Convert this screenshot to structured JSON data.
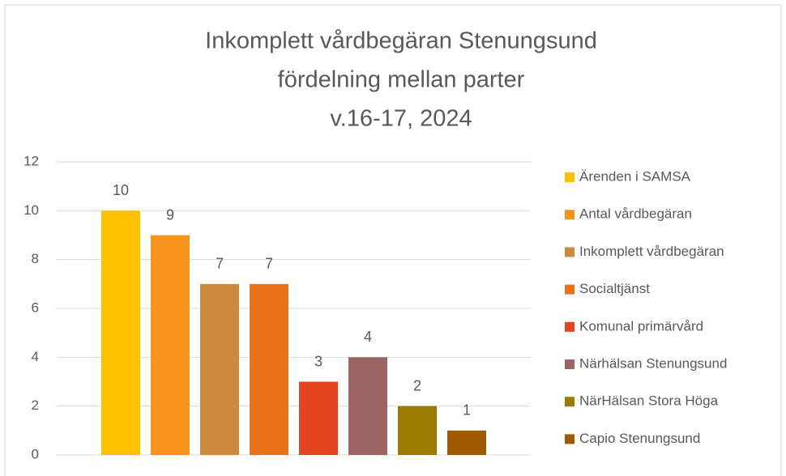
{
  "chart_data": {
    "type": "bar",
    "title": [
      "Inkomplett vårdbegäran Stenungsund",
      "fördelning mellan parter",
      "v.16-17, 2024"
    ],
    "categories": [
      null
    ],
    "series": [
      {
        "name": "Ärenden i SAMSA",
        "color": "#FFC000",
        "values": [
          10
        ]
      },
      {
        "name": "Antal vårdbegäran",
        "color": "#F7941D",
        "values": [
          9
        ]
      },
      {
        "name": "Inkomplett vårdbegäran",
        "color": "#CC8A3C",
        "values": [
          7
        ]
      },
      {
        "name": "Socialtjänst",
        "color": "#E8711A",
        "values": [
          7
        ]
      },
      {
        "name": "Komunal primärvård",
        "color": "#E4441F",
        "values": [
          3
        ]
      },
      {
        "name": "Närhälsan Stenungsund",
        "color": "#9B6566",
        "values": [
          4
        ]
      },
      {
        "name": "NärHälsan Stora Höga",
        "color": "#9A7B00",
        "values": [
          2
        ]
      },
      {
        "name": "Capio Stenungsund",
        "color": "#9E5A00",
        "values": [
          1
        ]
      }
    ],
    "ylim": [
      0,
      12
    ],
    "yticks": [
      0,
      2,
      4,
      6,
      8,
      10,
      12
    ],
    "grid": true,
    "legend": "right"
  }
}
